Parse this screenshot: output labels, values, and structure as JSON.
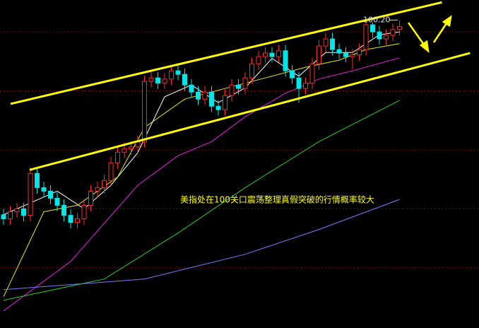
{
  "chart_data": {
    "type": "candlestick",
    "annotation": "美指处在100关口震荡整理真假突破的行情概率较大",
    "max_label": {
      "value": 100.2,
      "label": "100.20"
    },
    "xlim": [
      -0.526,
      70.84
    ],
    "ylim": [
      94.98,
      100.54
    ],
    "grid_lines": [
      96,
      97,
      98,
      99,
      100
    ],
    "grid_color": "#8b0000",
    "up_color": "#ff2a2a",
    "down_color": "#00e5e5",
    "open": [
      96.9,
      96.83,
      96.95,
      97.0,
      96.89,
      97.6,
      97.36,
      97.3,
      97.18,
      97.06,
      96.89,
      96.77,
      96.83,
      97.06,
      97.3,
      97.36,
      97.48,
      97.78,
      97.96,
      98.02,
      98.05,
      98.14,
      99.16,
      99.22,
      99.13,
      99.2,
      99.34,
      99.28,
      99.1,
      98.98,
      98.86,
      98.98,
      98.74,
      98.68,
      98.92,
      99.1,
      99.04,
      99.22,
      99.46,
      99.58,
      99.64,
      99.58,
      99.68,
      99.34,
      99.22,
      99.04,
      99.13,
      99.46,
      99.76,
      99.88,
      99.7,
      99.64,
      99.58,
      99.61,
      99.7,
      100.12,
      100.0,
      99.88,
      99.94,
      100.04
    ],
    "high": [
      97.0,
      97.05,
      97.1,
      97.1,
      97.7,
      97.7,
      97.46,
      97.4,
      97.28,
      97.16,
      96.99,
      96.93,
      97.16,
      97.4,
      97.46,
      97.58,
      97.88,
      98.06,
      98.12,
      98.15,
      98.24,
      99.26,
      99.32,
      99.32,
      99.3,
      99.44,
      99.44,
      99.38,
      99.2,
      99.08,
      99.08,
      99.08,
      98.84,
      99.02,
      99.2,
      99.2,
      99.32,
      99.56,
      99.68,
      99.74,
      99.74,
      99.78,
      99.78,
      99.44,
      99.32,
      99.23,
      99.56,
      99.86,
      99.98,
      99.98,
      99.8,
      99.74,
      99.71,
      99.8,
      100.2,
      100.16,
      100.1,
      100.04,
      100.14,
      100.19
    ],
    "low": [
      96.73,
      96.73,
      96.85,
      96.79,
      96.79,
      97.26,
      97.2,
      97.08,
      96.96,
      96.79,
      96.67,
      96.67,
      96.73,
      96.96,
      97.2,
      97.26,
      97.38,
      97.68,
      97.86,
      97.92,
      97.95,
      98.04,
      99.06,
      99.03,
      99.03,
      99.1,
      99.18,
      99.0,
      98.88,
      98.76,
      98.76,
      98.64,
      98.58,
      98.58,
      98.82,
      98.94,
      98.94,
      99.12,
      99.36,
      99.48,
      99.48,
      99.48,
      99.24,
      99.12,
      98.8,
      98.94,
      99.03,
      99.36,
      99.66,
      99.6,
      99.54,
      99.48,
      99.36,
      99.51,
      99.6,
      99.9,
      99.78,
      99.78,
      99.84,
      99.94
    ],
    "close": [
      96.83,
      96.95,
      97.0,
      96.89,
      97.6,
      97.36,
      97.3,
      97.18,
      97.06,
      96.89,
      96.77,
      96.83,
      97.06,
      97.3,
      97.36,
      97.48,
      97.78,
      97.96,
      98.02,
      98.05,
      98.14,
      99.16,
      99.22,
      99.13,
      99.2,
      99.34,
      99.28,
      99.1,
      98.98,
      98.86,
      98.98,
      98.74,
      98.68,
      98.92,
      99.1,
      99.04,
      99.22,
      99.46,
      99.58,
      99.64,
      99.58,
      99.68,
      99.34,
      99.22,
      99.04,
      99.13,
      99.46,
      99.76,
      99.88,
      99.7,
      99.64,
      99.58,
      99.61,
      99.7,
      100.12,
      100.0,
      99.88,
      99.94,
      100.04,
      100.09
    ],
    "moving_averages": [
      {
        "color": "#ffffff",
        "x": [
          0,
          4,
          8,
          12,
          16,
          20,
          24,
          28,
          32,
          36,
          40,
          44,
          48,
          52,
          56,
          59
        ],
        "values": [
          96.9,
          97.1,
          97.3,
          97.0,
          97.4,
          97.95,
          98.9,
          99.1,
          98.8,
          99.05,
          99.55,
          99.25,
          99.65,
          99.65,
          99.95,
          100.0
        ]
      },
      {
        "color": "#e8e800",
        "x": [
          0,
          6,
          11,
          17,
          21,
          27,
          33,
          39,
          45,
          50,
          54,
          59
        ],
        "values": [
          95.51,
          96.95,
          97.06,
          97.54,
          98.38,
          98.86,
          99.04,
          99.22,
          99.4,
          99.52,
          99.7,
          99.8
        ]
      },
      {
        "color": "#e020e0",
        "x": [
          0,
          10,
          20,
          26,
          31,
          36,
          42,
          47,
          52,
          59
        ],
        "values": [
          95.27,
          96.11,
          97.4,
          97.9,
          98.14,
          98.56,
          98.96,
          99.2,
          99.34,
          99.56
        ]
      },
      {
        "color": "#22cc22",
        "x": [
          0,
          15,
          26,
          36,
          47,
          59
        ],
        "values": [
          95.45,
          95.81,
          96.59,
          97.36,
          98.14,
          98.84
        ]
      },
      {
        "color": "#7a7aff",
        "x": [
          0,
          21,
          36,
          47,
          59
        ],
        "values": [
          95.63,
          95.81,
          96.23,
          96.65,
          97.16
        ]
      }
    ],
    "channel_lines": [
      {
        "color": "#ffff00",
        "x": [
          1.05,
          65.3
        ],
        "values": [
          98.78,
          100.5
        ]
      },
      {
        "color": "#ffff00",
        "x": [
          3.9,
          69.5
        ],
        "values": [
          97.66,
          99.64
        ]
      }
    ]
  }
}
